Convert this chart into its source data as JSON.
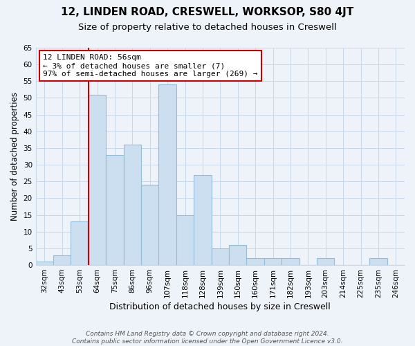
{
  "title": "12, LINDEN ROAD, CRESWELL, WORKSOP, S80 4JT",
  "subtitle": "Size of property relative to detached houses in Creswell",
  "xlabel": "Distribution of detached houses by size in Creswell",
  "ylabel": "Number of detached properties",
  "bins": [
    "32sqm",
    "43sqm",
    "53sqm",
    "64sqm",
    "75sqm",
    "86sqm",
    "96sqm",
    "107sqm",
    "118sqm",
    "128sqm",
    "139sqm",
    "150sqm",
    "160sqm",
    "171sqm",
    "182sqm",
    "193sqm",
    "203sqm",
    "214sqm",
    "225sqm",
    "235sqm",
    "246sqm"
  ],
  "values": [
    1,
    3,
    13,
    51,
    33,
    36,
    24,
    54,
    15,
    27,
    5,
    6,
    2,
    2,
    2,
    0,
    2,
    0,
    0,
    2,
    0
  ],
  "bar_color": "#ccdff0",
  "bar_edge_color": "#93bcd8",
  "red_line_x": 2.5,
  "red_line_color": "#cc0000",
  "annotation_line1": "12 LINDEN ROAD: 56sqm",
  "annotation_line2": "← 3% of detached houses are smaller (7)",
  "annotation_line3": "97% of semi-detached houses are larger (269) →",
  "annotation_box_color": "#ffffff",
  "annotation_box_edge": "#cc0000",
  "ylim": [
    0,
    65
  ],
  "yticks": [
    0,
    5,
    10,
    15,
    20,
    25,
    30,
    35,
    40,
    45,
    50,
    55,
    60,
    65
  ],
  "grid_color": "#c8d8e8",
  "background_color": "#eef3fa",
  "footer_text": "Contains HM Land Registry data © Crown copyright and database right 2024.\nContains public sector information licensed under the Open Government Licence v3.0.",
  "title_fontsize": 11,
  "subtitle_fontsize": 9.5,
  "xlabel_fontsize": 9,
  "ylabel_fontsize": 8.5,
  "tick_fontsize": 7.5,
  "footer_fontsize": 6.5
}
